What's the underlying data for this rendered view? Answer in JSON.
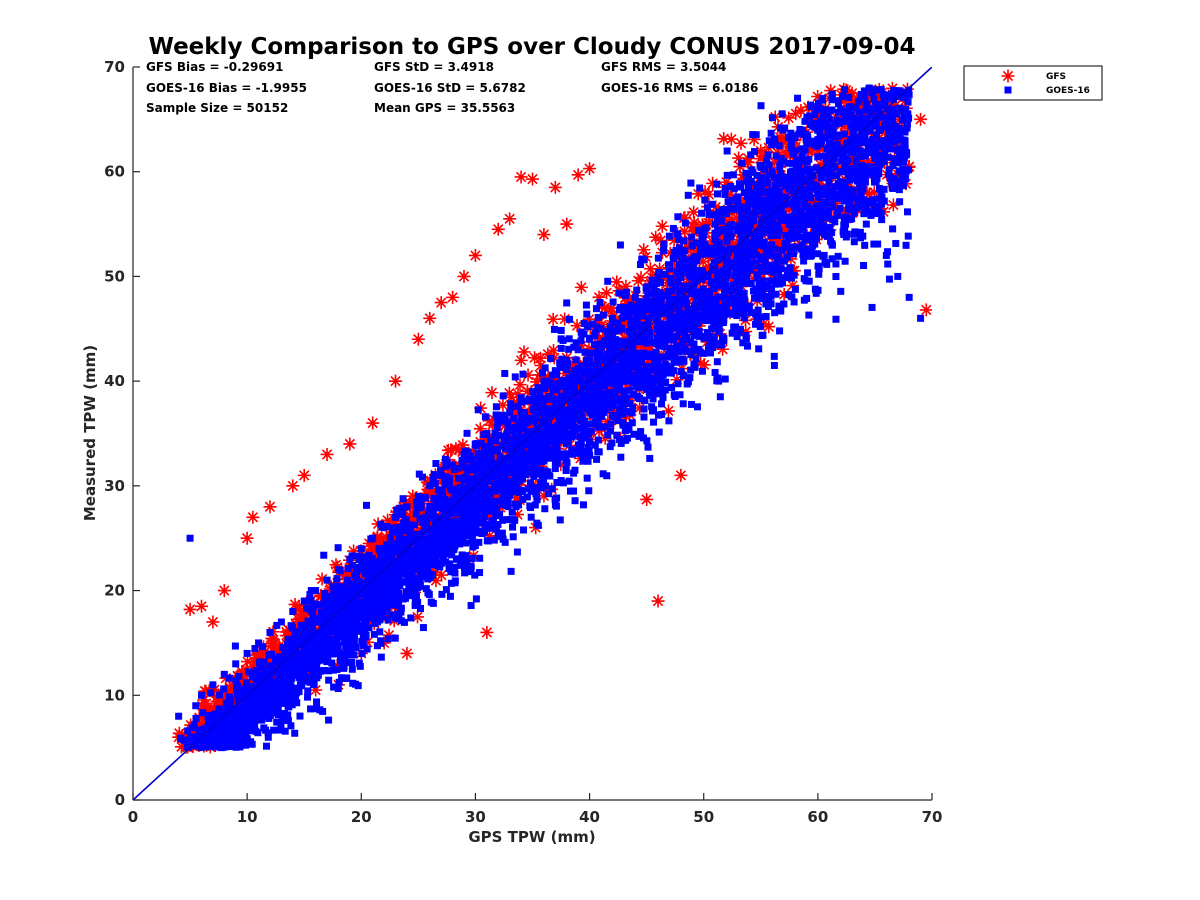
{
  "chart_data": {
    "type": "scatter",
    "title": "Weekly Comparison to GPS over Cloudy CONUS 2017-09-04",
    "xlabel": "GPS TPW (mm)",
    "ylabel": "Measured TPW (mm)",
    "xlim": [
      0,
      70
    ],
    "ylim": [
      0,
      70
    ],
    "xticks": [
      "0",
      "10",
      "20",
      "30",
      "40",
      "50",
      "60",
      "70"
    ],
    "yticks": [
      "0",
      "10",
      "20",
      "30",
      "40",
      "50",
      "60",
      "70"
    ],
    "grid": false,
    "legend_position": "outside top-right",
    "reference_line": {
      "x": [
        0,
        70
      ],
      "y": [
        0,
        70
      ],
      "color": "#0000cc"
    },
    "stats": [
      {
        "text": "GFS Bias = -0.29691"
      },
      {
        "text": "GFS StD = 3.4918"
      },
      {
        "text": "GFS RMS = 3.5044"
      },
      {
        "text": "GOES-16 Bias = -1.9955"
      },
      {
        "text": "GOES-16 StD = 5.6782"
      },
      {
        "text": "GOES-16 RMS = 6.0186"
      },
      {
        "text": "Sample Size = 50152"
      },
      {
        "text": "Mean GPS = 35.5563"
      }
    ],
    "series": [
      {
        "name": "GFS",
        "marker": "asterisk",
        "color": "#ff0000",
        "x": [
          4,
          5,
          6,
          6.5,
          7,
          8,
          9,
          10,
          10.5,
          11,
          12,
          13,
          14,
          15,
          16,
          17,
          18,
          19,
          20,
          21,
          22,
          23,
          24,
          25,
          26,
          27,
          28,
          29,
          30,
          31,
          32,
          33,
          34,
          35,
          36,
          37,
          38,
          39,
          40,
          45,
          46,
          48,
          52,
          55,
          58,
          60,
          61,
          62,
          63,
          64,
          65,
          66,
          67,
          68,
          69,
          69.5
        ],
        "y": [
          6,
          18.2,
          18.5,
          7,
          17,
          20,
          8,
          25,
          27,
          8,
          28,
          11,
          30,
          31,
          10.5,
          33,
          11,
          34,
          14,
          36,
          15,
          40,
          14,
          44,
          46,
          47.5,
          48,
          50,
          52,
          16,
          54.5,
          55.5,
          59.5,
          59.3,
          54,
          58.5,
          55,
          59.7,
          60.3,
          28.7,
          19,
          31,
          59,
          62,
          63,
          62,
          67,
          65,
          67.5,
          66,
          63,
          67,
          66,
          60.5,
          65,
          46.8
        ]
      },
      {
        "name": "GOES-16",
        "marker": "square",
        "color": "#0000ff",
        "x": [
          4,
          5,
          5.5,
          6,
          7,
          8,
          9,
          10,
          11,
          12,
          13,
          14,
          15,
          16,
          17,
          18,
          19,
          20,
          21,
          22,
          23,
          24,
          25,
          26,
          27,
          28,
          29,
          30,
          31,
          32,
          33,
          34,
          35,
          36,
          37,
          38,
          39,
          40,
          41,
          42,
          43,
          44,
          45,
          46,
          47,
          48,
          49,
          50,
          51,
          52,
          53,
          54,
          55,
          56,
          57,
          58,
          59,
          60,
          61,
          62,
          63,
          64,
          65,
          66,
          67,
          68,
          69
        ],
        "y": [
          8,
          25,
          9,
          10,
          11,
          12,
          13,
          14,
          15,
          16,
          17,
          18,
          19,
          20,
          21,
          22,
          23,
          24,
          25,
          26,
          27,
          28,
          29,
          30,
          31,
          32,
          33,
          34,
          35,
          36,
          37,
          38,
          39,
          40,
          41,
          42,
          43,
          44,
          45,
          46,
          47,
          48,
          49,
          50,
          51,
          52,
          53,
          54,
          55,
          56,
          57,
          58,
          59,
          60,
          61,
          62,
          63,
          64,
          65,
          66,
          62,
          60,
          56,
          52,
          50,
          48,
          46
        ]
      }
    ]
  }
}
